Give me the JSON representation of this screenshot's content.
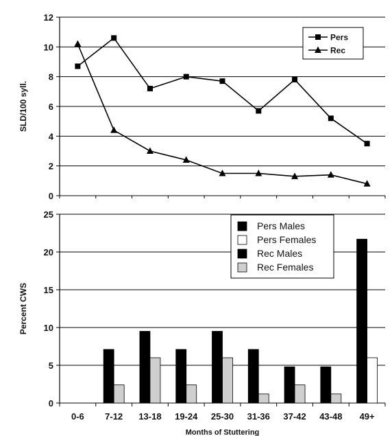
{
  "chart_data": [
    {
      "type": "line",
      "ylabel": "SLD/100 syll.",
      "ylim": [
        0,
        12
      ],
      "yticks": [
        0,
        2,
        4,
        6,
        8,
        10,
        12
      ],
      "grid": true,
      "legend_position": "top-right",
      "x": [
        "0-6",
        "7-12",
        "13-18",
        "19-24",
        "25-30",
        "31-36",
        "37-42",
        "43-48",
        "49+"
      ],
      "series": [
        {
          "name": "Pers",
          "marker": "square",
          "values": [
            8.7,
            10.6,
            7.2,
            8.0,
            7.7,
            5.7,
            7.8,
            5.2,
            3.5
          ]
        },
        {
          "name": "Rec",
          "marker": "triangle",
          "values": [
            10.2,
            4.4,
            3.0,
            2.4,
            1.5,
            1.5,
            1.3,
            1.4,
            0.8
          ]
        }
      ]
    },
    {
      "type": "bar",
      "ylabel": "Percent CWS",
      "xlabel": "Months of Stuttering",
      "ylim": [
        0,
        25
      ],
      "yticks": [
        0,
        5,
        10,
        15,
        20,
        25
      ],
      "grid": true,
      "legend_position": "top-right",
      "categories": [
        "0-6",
        "7-12",
        "13-18",
        "19-24",
        "25-30",
        "31-36",
        "37-42",
        "43-48",
        "49+"
      ],
      "series": [
        {
          "name": "Pers Males",
          "color": "#000000",
          "values": [
            0,
            0,
            0,
            0,
            0,
            0,
            0,
            0,
            21.7
          ]
        },
        {
          "name": "Pers Females",
          "color": "#ffffff",
          "values": [
            0,
            0,
            0,
            0,
            0,
            0,
            0,
            0,
            6.0
          ]
        },
        {
          "name": "Rec Males",
          "color": "#000000",
          "values": [
            0,
            7.1,
            9.5,
            7.1,
            9.5,
            7.1,
            4.8,
            4.8,
            0
          ]
        },
        {
          "name": "Rec Females",
          "color": "#cfcfcf",
          "values": [
            0,
            2.4,
            6.0,
            2.4,
            6.0,
            1.2,
            2.4,
            1.2,
            0
          ]
        }
      ]
    }
  ]
}
